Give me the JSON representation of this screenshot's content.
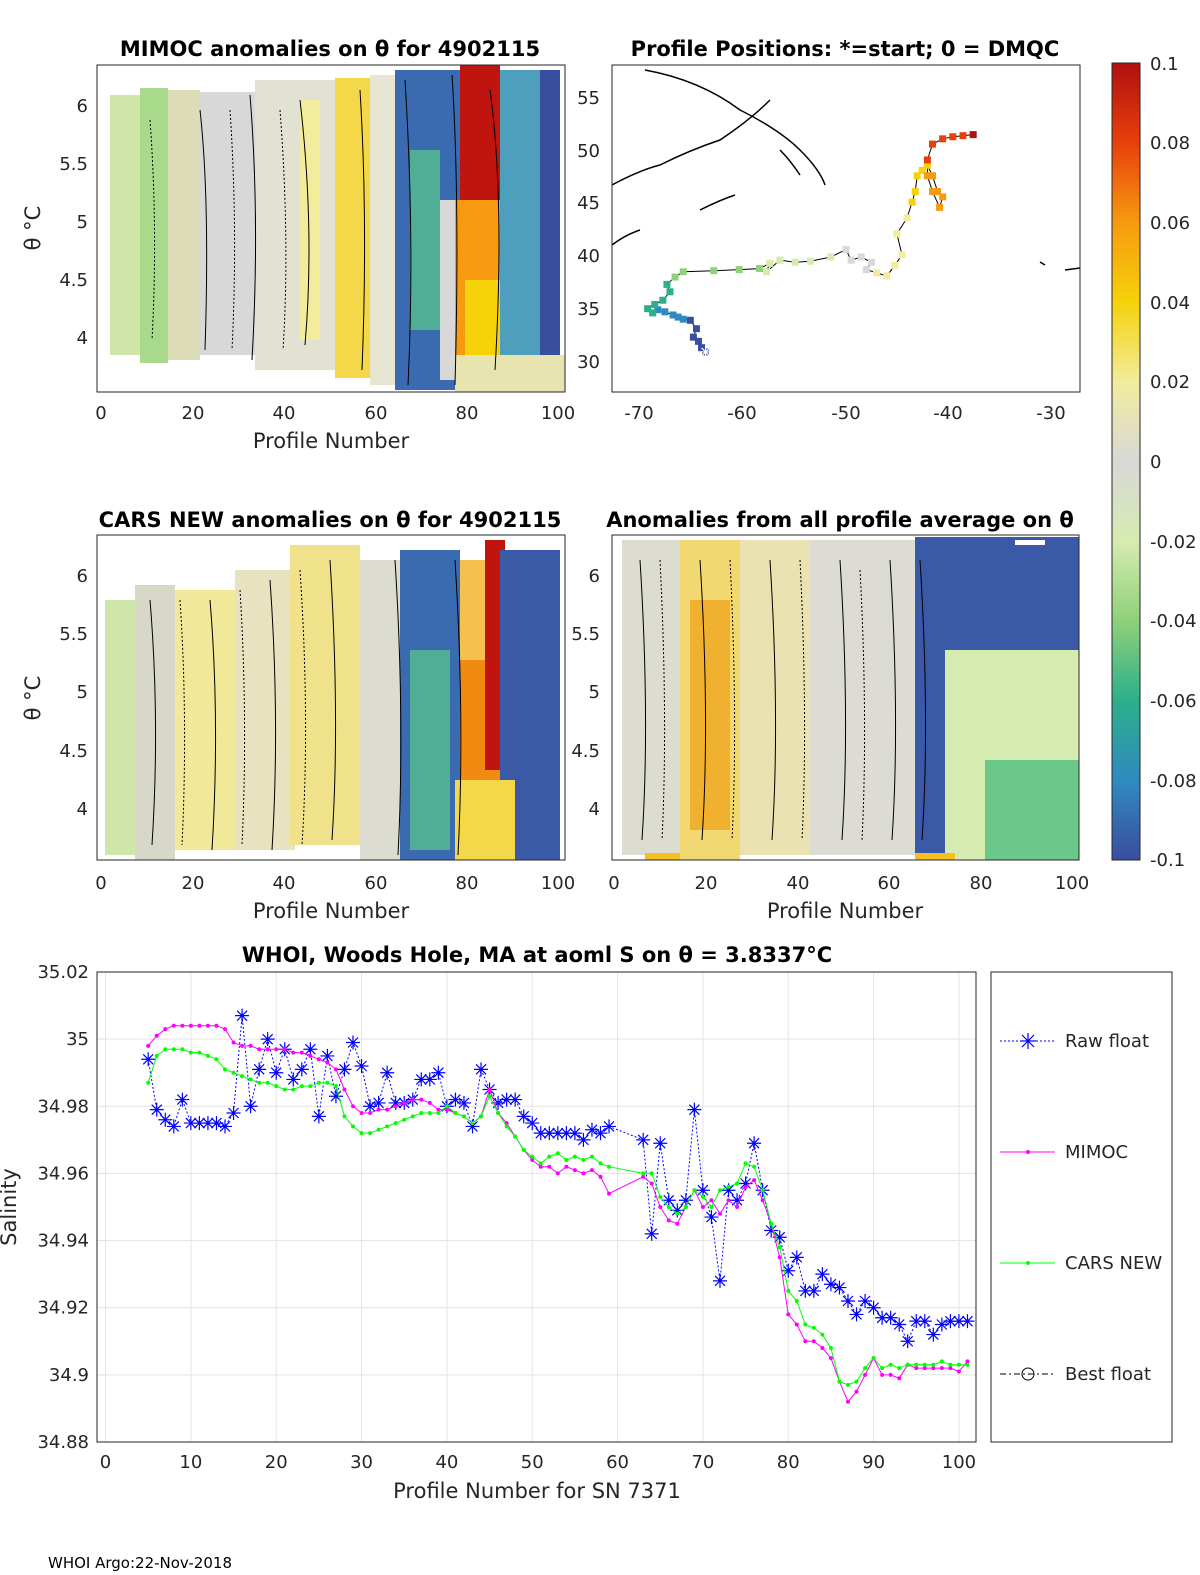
{
  "footer": "WHOI Argo:22-Nov-2018",
  "panels": {
    "mimoc": {
      "title": "MIMOC anomalies on θ  for 4902115",
      "ylabel": "θ °C",
      "xlabel": "Profile Number",
      "xticks": [
        "0",
        "20",
        "40",
        "60",
        "80",
        "100"
      ],
      "yticks": [
        "4",
        "4.5",
        "5",
        "5.5",
        "6"
      ]
    },
    "positions": {
      "title": "Profile Positions: *=start; 0 = DMQC",
      "xticks": [
        "-70",
        "-60",
        "-50",
        "-40",
        "-30"
      ],
      "yticks": [
        "30",
        "35",
        "40",
        "45",
        "50",
        "55"
      ]
    },
    "cars": {
      "title": "CARS NEW anomalies on θ for 4902115",
      "ylabel": "θ °C",
      "xlabel": "Profile Number",
      "xticks": [
        "0",
        "20",
        "40",
        "60",
        "80",
        "100"
      ],
      "yticks": [
        "4",
        "4.5",
        "5",
        "5.5",
        "6"
      ]
    },
    "allavg": {
      "title": "Anomalies from all profile average on θ",
      "xlabel": "Profile Number",
      "xticks": [
        "0",
        "20",
        "40",
        "60",
        "80",
        "100"
      ],
      "yticks": [
        "4",
        "4.5",
        "5",
        "5.5",
        "6"
      ]
    }
  },
  "colorbar": {
    "ticks": [
      "0.1",
      "0.08",
      "0.06",
      "0.04",
      "0.02",
      "0",
      "-0.02",
      "-0.04",
      "-0.06",
      "-0.08",
      "-0.1"
    ],
    "colors": [
      "#3a4ea0",
      "#2f8ac0",
      "#2bb08a",
      "#8fd07a",
      "#d6ebb0",
      "#d8d8d8",
      "#f2ec9c",
      "#f5d20a",
      "#f79a10",
      "#e8400c",
      "#b01010"
    ]
  },
  "chart_data": [
    {
      "type": "line",
      "title": "WHOI, Woods Hole, MA at aoml S on θ = 3.8337°C",
      "xlabel": "Profile Number for SN 7371",
      "ylabel": "Salinity",
      "xlim": [
        -1,
        102
      ],
      "ylim": [
        34.88,
        35.02
      ],
      "xticks": [
        0,
        10,
        20,
        30,
        40,
        50,
        60,
        70,
        80,
        90,
        100
      ],
      "yticks": [
        34.88,
        34.9,
        34.92,
        34.94,
        34.96,
        34.98,
        35,
        35.02
      ],
      "xticklabels": [
        "0",
        "10",
        "20",
        "30",
        "40",
        "50",
        "60",
        "70",
        "80",
        "90",
        "100"
      ],
      "yticklabels": [
        "34.88",
        "34.9",
        "34.92",
        "34.94",
        "34.96",
        "34.98",
        "35",
        "35.02"
      ],
      "legend": [
        "Raw float",
        "MIMOC",
        "CARS NEW",
        "Best float"
      ],
      "series": [
        {
          "name": "Raw float",
          "color": "#0000ff",
          "marker": "asterisk",
          "style": "dotted",
          "x": [
            5,
            6,
            7,
            8,
            9,
            10,
            11,
            12,
            13,
            14,
            15,
            16,
            17,
            18,
            19,
            20,
            21,
            22,
            23,
            24,
            25,
            26,
            27,
            28,
            29,
            30,
            31,
            32,
            33,
            34,
            35,
            36,
            37,
            38,
            39,
            40,
            41,
            42,
            43,
            44,
            45,
            46,
            47,
            48,
            49,
            50,
            51,
            52,
            53,
            54,
            55,
            56,
            57,
            58,
            59,
            63,
            64,
            65,
            66,
            67,
            68,
            69,
            70,
            71,
            72,
            73,
            74,
            75,
            76,
            77,
            78,
            79,
            80,
            81,
            82,
            83,
            84,
            85,
            86,
            87,
            88,
            89,
            90,
            91,
            92,
            93,
            94,
            95,
            96,
            97,
            98,
            99,
            100,
            101
          ],
          "y": [
            34.994,
            34.979,
            34.976,
            34.974,
            34.982,
            34.975,
            34.975,
            34.975,
            34.975,
            34.974,
            34.978,
            35.007,
            34.98,
            34.991,
            35.0,
            34.99,
            34.997,
            34.988,
            34.991,
            34.997,
            34.977,
            34.995,
            34.983,
            34.991,
            34.999,
            34.992,
            34.98,
            34.981,
            34.99,
            34.981,
            34.981,
            34.982,
            34.988,
            34.988,
            34.99,
            34.98,
            34.982,
            34.981,
            34.974,
            34.991,
            34.985,
            34.981,
            34.982,
            34.982,
            34.977,
            34.975,
            34.972,
            34.972,
            34.972,
            34.972,
            34.972,
            34.97,
            34.973,
            34.972,
            34.974,
            34.97,
            34.942,
            34.969,
            34.952,
            34.949,
            34.952,
            34.979,
            34.955,
            34.947,
            34.928,
            34.955,
            34.952,
            34.957,
            34.969,
            34.955,
            34.943,
            34.941,
            34.931,
            34.935,
            34.925,
            34.925,
            34.93,
            34.927,
            34.926,
            34.922,
            34.918,
            34.922,
            34.92,
            34.917,
            34.917,
            34.915,
            34.91,
            34.916,
            34.916,
            34.912,
            34.915,
            34.916,
            34.916,
            34.916
          ]
        },
        {
          "name": "MIMOC",
          "color": "#ff00ff",
          "marker": "dot",
          "style": "solid",
          "x": [
            5,
            6,
            7,
            8,
            9,
            10,
            11,
            12,
            13,
            14,
            15,
            16,
            17,
            18,
            19,
            20,
            21,
            22,
            23,
            24,
            25,
            26,
            27,
            28,
            29,
            30,
            31,
            32,
            33,
            34,
            35,
            36,
            37,
            38,
            39,
            40,
            41,
            42,
            43,
            44,
            45,
            46,
            47,
            48,
            49,
            50,
            51,
            52,
            53,
            54,
            55,
            56,
            57,
            58,
            59,
            63,
            64,
            65,
            66,
            67,
            68,
            69,
            70,
            71,
            72,
            73,
            74,
            75,
            76,
            77,
            78,
            79,
            80,
            81,
            82,
            83,
            84,
            85,
            86,
            87,
            88,
            89,
            90,
            91,
            92,
            93,
            94,
            95,
            96,
            97,
            98,
            99,
            100,
            101
          ],
          "y": [
            34.998,
            35.001,
            35.003,
            35.004,
            35.004,
            35.004,
            35.004,
            35.004,
            35.004,
            35.003,
            34.999,
            34.998,
            34.998,
            34.997,
            34.997,
            34.997,
            34.997,
            34.996,
            34.996,
            34.995,
            34.994,
            34.993,
            34.991,
            34.985,
            34.98,
            34.978,
            34.978,
            34.979,
            34.979,
            34.98,
            34.981,
            34.982,
            34.982,
            34.981,
            34.979,
            34.979,
            34.978,
            34.977,
            34.975,
            34.977,
            34.985,
            34.978,
            34.975,
            34.971,
            34.967,
            34.964,
            34.962,
            34.962,
            34.96,
            34.962,
            34.961,
            34.96,
            34.961,
            34.959,
            34.954,
            34.959,
            34.957,
            34.95,
            34.946,
            34.945,
            34.95,
            34.955,
            34.95,
            34.952,
            34.948,
            34.952,
            34.95,
            34.956,
            34.958,
            34.952,
            34.945,
            34.935,
            34.918,
            34.915,
            34.91,
            34.91,
            34.908,
            34.905,
            34.898,
            34.892,
            34.895,
            34.9,
            34.905,
            34.9,
            34.9,
            34.899,
            34.903,
            34.902,
            34.902,
            34.902,
            34.902,
            34.902,
            34.901,
            34.904
          ]
        },
        {
          "name": "CARS NEW",
          "color": "#00ff00",
          "marker": "dot",
          "style": "solid",
          "x": [
            5,
            6,
            7,
            8,
            9,
            10,
            11,
            12,
            13,
            14,
            15,
            16,
            17,
            18,
            19,
            20,
            21,
            22,
            23,
            24,
            25,
            26,
            27,
            28,
            29,
            30,
            31,
            32,
            33,
            34,
            35,
            36,
            37,
            38,
            39,
            40,
            41,
            42,
            43,
            44,
            45,
            46,
            47,
            48,
            49,
            50,
            51,
            52,
            53,
            54,
            55,
            56,
            57,
            58,
            59,
            63,
            64,
            65,
            66,
            67,
            68,
            69,
            70,
            71,
            72,
            73,
            74,
            75,
            76,
            77,
            78,
            79,
            80,
            81,
            82,
            83,
            84,
            85,
            86,
            87,
            88,
            89,
            90,
            91,
            92,
            93,
            94,
            95,
            96,
            97,
            98,
            99,
            100,
            101
          ],
          "y": [
            34.987,
            34.995,
            34.997,
            34.997,
            34.997,
            34.996,
            34.996,
            34.995,
            34.994,
            34.991,
            34.99,
            34.989,
            34.988,
            34.987,
            34.987,
            34.986,
            34.985,
            34.985,
            34.986,
            34.986,
            34.987,
            34.987,
            34.986,
            34.977,
            34.974,
            34.972,
            34.972,
            34.973,
            34.974,
            34.975,
            34.976,
            34.977,
            34.978,
            34.978,
            34.978,
            34.98,
            34.978,
            34.977,
            34.975,
            34.977,
            34.983,
            34.978,
            34.974,
            34.971,
            34.967,
            34.965,
            34.963,
            34.965,
            34.966,
            34.964,
            34.965,
            34.964,
            34.965,
            34.963,
            34.962,
            34.96,
            34.96,
            34.953,
            34.95,
            34.948,
            34.95,
            34.955,
            34.953,
            34.95,
            34.955,
            34.956,
            34.957,
            34.963,
            34.962,
            34.955,
            34.945,
            34.938,
            34.925,
            34.922,
            34.915,
            34.914,
            34.912,
            34.908,
            34.898,
            34.897,
            34.898,
            34.902,
            34.905,
            34.902,
            34.903,
            34.902,
            34.903,
            34.903,
            34.903,
            34.903,
            34.904,
            34.903,
            34.903,
            34.903
          ]
        }
      ]
    },
    {
      "type": "scatter",
      "title": "Profile Positions: *=start; 0 = DMQC",
      "xlim": [
        -73,
        -27
      ],
      "ylim": [
        27,
        58
      ],
      "track_lon": [
        -63.8,
        -64.2,
        -64.5,
        -65,
        -64.7,
        -65.3,
        -66,
        -66.5,
        -67,
        -67.8,
        -68.5,
        -69,
        -69.5,
        -68.8,
        -68,
        -67.3,
        -67.6,
        -66.8,
        -66,
        -63,
        -60.5,
        -58.5,
        -57.5,
        -57.8,
        -56.5,
        -55,
        -53.5,
        -51.5,
        -50,
        -49.5,
        -48.5,
        -47.5,
        -48,
        -47,
        -46,
        -45.2,
        -44.5,
        -45,
        -44,
        -43.5,
        -43.2,
        -43,
        -42.5,
        -42,
        -41.5,
        -41,
        -40.5,
        -40.8,
        -41.5,
        -42,
        -42,
        -41.5,
        -40.5,
        -39.5,
        -38.5,
        -37.5
      ],
      "track_lat": [
        30.8,
        31.2,
        31.8,
        32.2,
        33,
        33.8,
        33.9,
        34.1,
        34.3,
        34.6,
        34.8,
        34.5,
        34.9,
        35.3,
        35.7,
        36.5,
        37.2,
        37.9,
        38.4,
        38.5,
        38.6,
        38.7,
        39.2,
        38.4,
        39.5,
        39.3,
        39.4,
        39.8,
        40.5,
        39.5,
        39.8,
        39.3,
        38.6,
        38.3,
        38,
        39,
        40,
        42,
        43.5,
        45,
        46,
        47.5,
        48,
        48.5,
        47.5,
        46,
        45.5,
        44.5,
        46,
        47.5,
        49,
        50.5,
        51,
        51.2,
        51.3,
        51.4
      ]
    }
  ]
}
